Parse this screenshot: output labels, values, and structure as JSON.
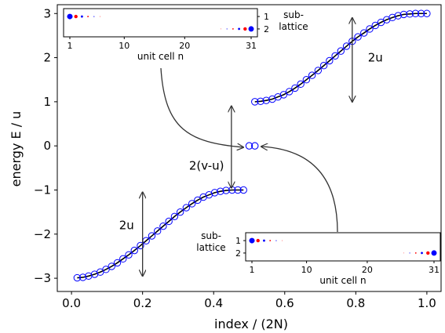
{
  "chart_data": {
    "type": "scatter",
    "xlabel": "index / (2N)",
    "ylabel": "energy E / u",
    "xlim": [
      -0.04,
      1.04
    ],
    "ylim": [
      -3.3,
      3.2
    ],
    "x_ticks": [
      0.0,
      0.2,
      0.4,
      0.6,
      0.8,
      1.0
    ],
    "x_tick_labels": [
      "0.0",
      "0.2",
      "0.4",
      "0.6",
      "0.8",
      "1.0"
    ],
    "y_ticks": [
      -3,
      -2,
      -1,
      0,
      1,
      2,
      3
    ],
    "y_tick_labels": [
      "−3",
      "−2",
      "−1",
      "0",
      "1",
      "2",
      "3"
    ],
    "colors": {
      "markers": "#0000ff",
      "curve": "#000000",
      "arrow": "#333333",
      "site_blue": "#0000ff",
      "site_red": "#ff0000"
    },
    "lower_band": {
      "x": [
        0.016,
        0.032,
        0.048,
        0.065,
        0.081,
        0.097,
        0.113,
        0.129,
        0.145,
        0.161,
        0.177,
        0.194,
        0.21,
        0.226,
        0.242,
        0.258,
        0.274,
        0.29,
        0.306,
        0.323,
        0.339,
        0.355,
        0.371,
        0.387,
        0.403,
        0.419,
        0.435,
        0.452,
        0.468,
        0.484
      ],
      "y": [
        -2.99,
        -2.98,
        -2.95,
        -2.91,
        -2.86,
        -2.8,
        -2.73,
        -2.65,
        -2.56,
        -2.47,
        -2.37,
        -2.26,
        -2.15,
        -2.04,
        -1.93,
        -1.82,
        -1.71,
        -1.6,
        -1.5,
        -1.4,
        -1.31,
        -1.23,
        -1.16,
        -1.11,
        -1.06,
        -1.03,
        -1.01,
        -1.0,
        -1.0,
        -1.0
      ]
    },
    "upper_band": {
      "x": [
        0.516,
        0.532,
        0.548,
        0.565,
        0.581,
        0.597,
        0.613,
        0.629,
        0.645,
        0.661,
        0.677,
        0.694,
        0.71,
        0.726,
        0.742,
        0.758,
        0.774,
        0.79,
        0.806,
        0.823,
        0.839,
        0.855,
        0.871,
        0.887,
        0.903,
        0.919,
        0.935,
        0.952,
        0.968,
        0.984,
        1.0
      ],
      "y": [
        1.0,
        1.01,
        1.03,
        1.06,
        1.11,
        1.16,
        1.23,
        1.31,
        1.4,
        1.5,
        1.6,
        1.71,
        1.82,
        1.93,
        2.04,
        2.15,
        2.26,
        2.37,
        2.47,
        2.56,
        2.65,
        2.73,
        2.8,
        2.86,
        2.91,
        2.95,
        2.98,
        2.99,
        3.0,
        3.0,
        3.0
      ]
    },
    "edge_states": {
      "x": [
        0.5,
        0.516
      ],
      "y": [
        0.0,
        0.0
      ]
    },
    "annotations": [
      {
        "text": "2u",
        "x": 0.855,
        "y": 2.0,
        "arrow": [
          [
            0.79,
            2.9
          ],
          [
            0.79,
            1.0
          ]
        ]
      },
      {
        "text": "2(v-u)",
        "x": 0.38,
        "y": -0.45,
        "arrow": [
          [
            0.45,
            0.9
          ],
          [
            0.45,
            -0.95
          ]
        ]
      },
      {
        "text": "2u",
        "x": 0.155,
        "y": -1.8,
        "arrow": [
          [
            0.2,
            -1.05
          ],
          [
            0.2,
            -2.95
          ]
        ]
      }
    ],
    "inset_top": {
      "xlabel": "unit cell n",
      "x_ticks": [
        1,
        10,
        20,
        31
      ],
      "x_tick_labels": [
        "1",
        "10",
        "20",
        "31"
      ],
      "side_label": "sub-\nlattice",
      "y_tick_labels": [
        "1",
        "2"
      ],
      "sublattice1_sizes": [
        3.5,
        2.2,
        1.4,
        0.9,
        0.6,
        0.4
      ],
      "sublattice2_sizes": [
        0.4,
        0.6,
        0.9,
        1.4,
        2.2,
        3.5
      ]
    },
    "inset_bottom": {
      "xlabel": "unit cell n",
      "x_ticks": [
        1,
        10,
        20,
        31
      ],
      "x_tick_labels": [
        "1",
        "10",
        "20",
        "31"
      ],
      "side_label": "sub-\nlattice",
      "y_tick_labels": [
        "1",
        "2"
      ],
      "sublattice1_sizes": [
        3.5,
        2.2,
        1.4,
        0.9,
        0.6,
        0.4
      ],
      "sublattice2_sizes": [
        0.4,
        0.6,
        0.9,
        1.4,
        2.2,
        3.5
      ]
    }
  }
}
